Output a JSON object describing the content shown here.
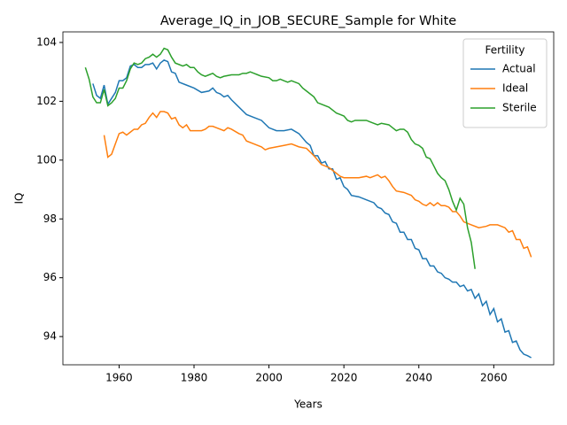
{
  "chart_data": {
    "type": "line",
    "title": "Average_IQ_in_JOB_SECURE_Sample for White",
    "x_label": "Years",
    "y_label": "IQ",
    "xlim": [
      1945,
      2076
    ],
    "ylim": [
      93.04,
      104.36
    ],
    "xticks": [
      1960,
      1980,
      2000,
      2020,
      2040,
      2060
    ],
    "yticks": [
      94,
      96,
      98,
      100,
      102,
      104
    ],
    "legend_title": "Fertility",
    "legend_loc": "upper right",
    "series": [
      {
        "name": "Actual",
        "color": "#1f77b4",
        "x": [
          1953,
          1954,
          1955,
          1956,
          1957,
          1958,
          1959,
          1960,
          1961,
          1962,
          1963,
          1964,
          1965,
          1966,
          1967,
          1968,
          1969,
          1970,
          1971,
          1972,
          1973,
          1974,
          1975,
          1976,
          1978,
          1980,
          1982,
          1984,
          1985,
          1986,
          1987,
          1988,
          1989,
          1990,
          1992,
          1994,
          1996,
          1998,
          2000,
          2002,
          2004,
          2006,
          2008,
          2010,
          2011,
          2012,
          2013,
          2014,
          2015,
          2016,
          2017,
          2018,
          2019,
          2020,
          2021,
          2022,
          2024,
          2026,
          2028,
          2029,
          2030,
          2031,
          2032,
          2033,
          2034,
          2035,
          2036,
          2037,
          2038,
          2039,
          2040,
          2041,
          2042,
          2043,
          2044,
          2045,
          2046,
          2047,
          2048,
          2049,
          2050,
          2051,
          2052,
          2053,
          2054,
          2055,
          2056,
          2057,
          2058,
          2059,
          2060,
          2061,
          2062,
          2063,
          2064,
          2065,
          2066,
          2067,
          2068,
          2069,
          2070
        ],
        "values": [
          102.6,
          102.2,
          102.1,
          102.55,
          101.9,
          102.1,
          102.3,
          102.7,
          102.7,
          102.8,
          103.2,
          103.25,
          103.15,
          103.15,
          103.25,
          103.25,
          103.3,
          103.1,
          103.3,
          103.4,
          103.35,
          103.0,
          102.95,
          102.65,
          102.55,
          102.45,
          102.3,
          102.35,
          102.45,
          102.3,
          102.25,
          102.15,
          102.2,
          102.05,
          101.8,
          101.55,
          101.45,
          101.35,
          101.1,
          101.0,
          101.0,
          101.05,
          100.9,
          100.6,
          100.5,
          100.15,
          100.15,
          99.9,
          99.95,
          99.7,
          99.7,
          99.35,
          99.4,
          99.1,
          99.0,
          98.8,
          98.75,
          98.65,
          98.55,
          98.4,
          98.35,
          98.2,
          98.15,
          97.9,
          97.85,
          97.55,
          97.55,
          97.3,
          97.3,
          97.0,
          96.95,
          96.65,
          96.65,
          96.4,
          96.4,
          96.2,
          96.15,
          96.0,
          95.95,
          95.85,
          95.85,
          95.7,
          95.75,
          95.55,
          95.6,
          95.3,
          95.45,
          95.05,
          95.2,
          94.75,
          94.95,
          94.5,
          94.6,
          94.15,
          94.2,
          93.8,
          93.85,
          93.55,
          93.4,
          93.35,
          93.28
        ]
      },
      {
        "name": "Ideal",
        "color": "#ff7f0e",
        "x": [
          1956,
          1957,
          1958,
          1959,
          1960,
          1961,
          1962,
          1963,
          1964,
          1965,
          1966,
          1967,
          1968,
          1969,
          1970,
          1971,
          1972,
          1973,
          1974,
          1975,
          1976,
          1977,
          1978,
          1979,
          1980,
          1982,
          1983,
          1984,
          1985,
          1986,
          1988,
          1989,
          1990,
          1992,
          1993,
          1994,
          1996,
          1998,
          1999,
          2000,
          2002,
          2004,
          2006,
          2008,
          2010,
          2012,
          2014,
          2016,
          2018,
          2019,
          2020,
          2022,
          2024,
          2026,
          2027,
          2028,
          2029,
          2030,
          2031,
          2032,
          2033,
          2034,
          2036,
          2038,
          2039,
          2040,
          2041,
          2042,
          2043,
          2044,
          2045,
          2046,
          2047,
          2048,
          2049,
          2050,
          2051,
          2052,
          2054,
          2056,
          2058,
          2059,
          2060,
          2061,
          2062,
          2063,
          2064,
          2065,
          2066,
          2067,
          2068,
          2069,
          2070
        ],
        "values": [
          100.85,
          100.1,
          100.2,
          100.55,
          100.9,
          100.95,
          100.85,
          100.95,
          101.05,
          101.05,
          101.2,
          101.25,
          101.45,
          101.6,
          101.45,
          101.65,
          101.65,
          101.6,
          101.4,
          101.45,
          101.2,
          101.1,
          101.2,
          101.0,
          101.0,
          101.0,
          101.05,
          101.15,
          101.15,
          101.1,
          101.0,
          101.1,
          101.05,
          100.9,
          100.85,
          100.65,
          100.55,
          100.45,
          100.35,
          100.4,
          100.45,
          100.5,
          100.55,
          100.45,
          100.4,
          100.15,
          99.85,
          99.75,
          99.55,
          99.45,
          99.4,
          99.4,
          99.4,
          99.45,
          99.4,
          99.45,
          99.5,
          99.4,
          99.45,
          99.3,
          99.1,
          98.95,
          98.9,
          98.8,
          98.65,
          98.6,
          98.5,
          98.45,
          98.55,
          98.45,
          98.55,
          98.45,
          98.45,
          98.4,
          98.25,
          98.25,
          98.1,
          97.9,
          97.8,
          97.7,
          97.75,
          97.8,
          97.8,
          97.8,
          97.75,
          97.7,
          97.55,
          97.6,
          97.3,
          97.3,
          97.0,
          97.05,
          96.7
        ]
      },
      {
        "name": "Sterile",
        "color": "#2ca02c",
        "x": [
          1951,
          1952,
          1953,
          1954,
          1955,
          1956,
          1957,
          1958,
          1959,
          1960,
          1961,
          1962,
          1963,
          1964,
          1965,
          1966,
          1967,
          1968,
          1969,
          1970,
          1971,
          1972,
          1973,
          1974,
          1975,
          1976,
          1977,
          1978,
          1979,
          1980,
          1981,
          1982,
          1983,
          1984,
          1985,
          1986,
          1987,
          1988,
          1990,
          1992,
          1993,
          1994,
          1995,
          1996,
          1997,
          1998,
          2000,
          2001,
          2002,
          2003,
          2004,
          2005,
          2006,
          2008,
          2009,
          2010,
          2012,
          2013,
          2014,
          2016,
          2018,
          2019,
          2020,
          2021,
          2022,
          2023,
          2024,
          2026,
          2027,
          2028,
          2029,
          2030,
          2032,
          2033,
          2034,
          2035,
          2036,
          2037,
          2038,
          2039,
          2040,
          2041,
          2042,
          2043,
          2044,
          2045,
          2046,
          2047,
          2048,
          2049,
          2050,
          2051,
          2052,
          2053,
          2054,
          2055
        ],
        "values": [
          103.15,
          102.75,
          102.15,
          101.95,
          101.95,
          102.4,
          101.85,
          101.95,
          102.1,
          102.45,
          102.45,
          102.7,
          103.1,
          103.3,
          103.25,
          103.3,
          103.45,
          103.5,
          103.6,
          103.5,
          103.6,
          103.8,
          103.75,
          103.5,
          103.3,
          103.25,
          103.2,
          103.25,
          103.15,
          103.15,
          103.0,
          102.9,
          102.85,
          102.9,
          102.95,
          102.85,
          102.8,
          102.85,
          102.9,
          102.9,
          102.95,
          102.95,
          103.0,
          102.95,
          102.9,
          102.85,
          102.8,
          102.7,
          102.7,
          102.75,
          102.7,
          102.65,
          102.7,
          102.6,
          102.45,
          102.35,
          102.15,
          101.95,
          101.9,
          101.8,
          101.6,
          101.55,
          101.5,
          101.35,
          101.3,
          101.35,
          101.35,
          101.35,
          101.3,
          101.25,
          101.2,
          101.25,
          101.2,
          101.1,
          101.0,
          101.05,
          101.05,
          100.95,
          100.7,
          100.55,
          100.5,
          100.4,
          100.1,
          100.05,
          99.8,
          99.55,
          99.4,
          99.3,
          99.0,
          98.6,
          98.3,
          98.7,
          98.5,
          97.7,
          97.2,
          96.3
        ]
      }
    ]
  }
}
